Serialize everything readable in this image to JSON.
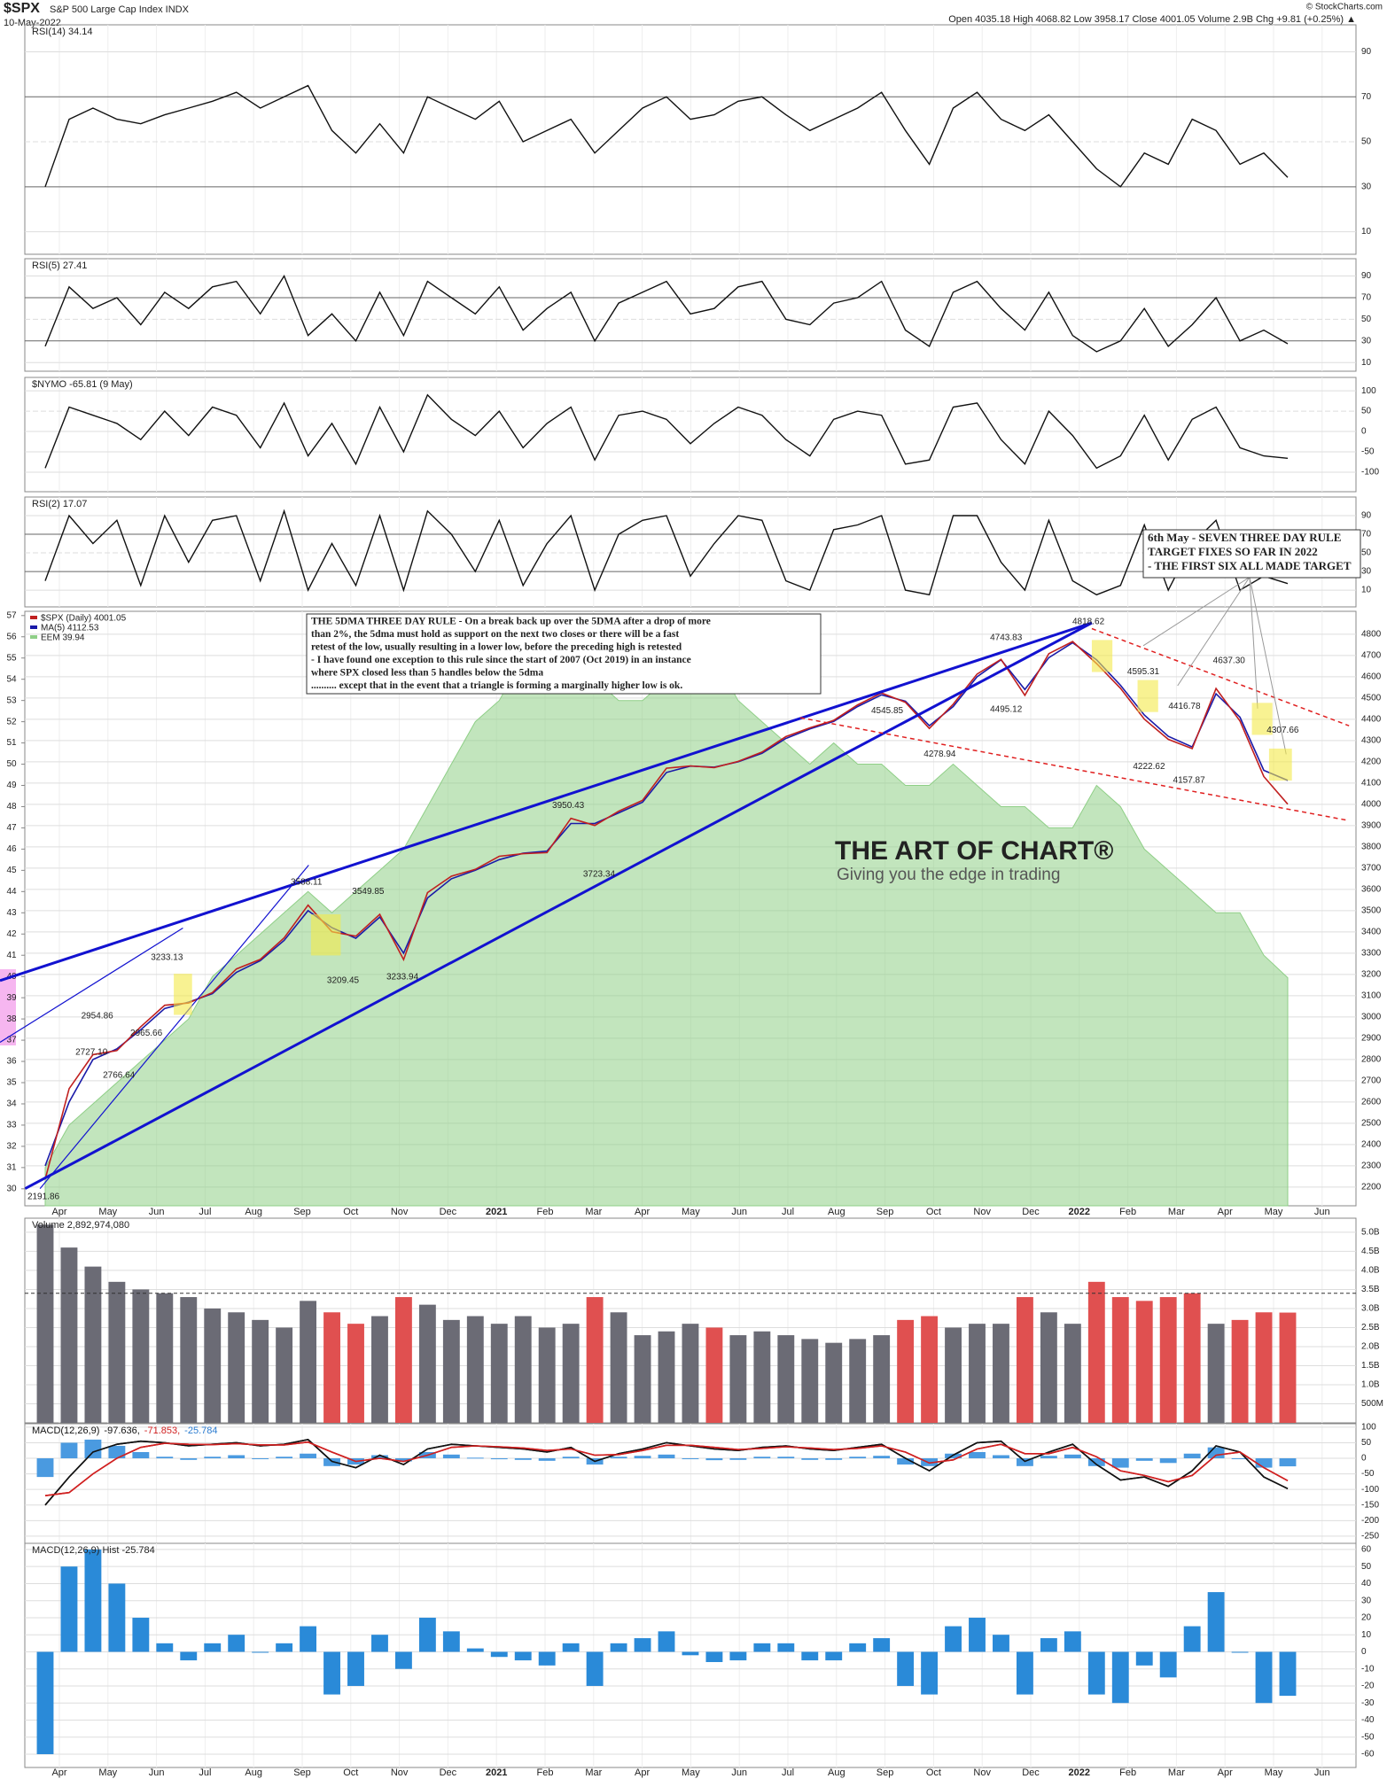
{
  "header": {
    "symbol": "$SPX",
    "name": "S&P 500 Large Cap Index INDX",
    "date": "10-May-2022",
    "stats": "Open 4035.18  High 4068.82  Low 3958.17  Close 4001.05  Volume 2.9B  Chg +9.81 (+0.25%) ▲",
    "copyright": "© StockCharts.com"
  },
  "x_axis": {
    "labels": [
      "Apr",
      "May",
      "Jun",
      "Jul",
      "Aug",
      "Sep",
      "Oct",
      "Nov",
      "Dec",
      "2021",
      "Feb",
      "Mar",
      "Apr",
      "May",
      "Jun",
      "Jul",
      "Aug",
      "Sep",
      "Oct",
      "Nov",
      "Dec",
      "2022",
      "Feb",
      "Mar",
      "Apr",
      "May",
      "Jun"
    ]
  },
  "notes": {
    "rule_box": [
      "THE 5DMA THREE DAY RULE - On a break back up over the 5DMA after a drop of more",
      "than 2%, the 5dma must hold as support on the next two closes or there will be a fast",
      "retest of the low, usually resulting in a lower low, before the preceding high is retested",
      "- I have found one exception to this rule since the start of 2007 (Oct 2019) in an instance",
      "where SPX closed less than 5 handles below the 5dma",
      ".......... except that in the event that a triangle is forming a marginally higher low is ok."
    ],
    "target_box": [
      "6th May - SEVEN THREE DAY RULE",
      "TARGET FIXES SO FAR IN 2022",
      "- THE FIRST SIX ALL MADE TARGET"
    ],
    "watermark": "THE ART OF CHART®",
    "watermark_sub": "Giving you the edge in trading"
  },
  "chart_data": [
    {
      "type": "line",
      "title": "RSI(14) 34.14",
      "ylim": [
        0,
        102
      ],
      "yticks": [
        10,
        30,
        50,
        70,
        90
      ],
      "color": "#111111",
      "values": [
        30,
        60,
        65,
        60,
        58,
        62,
        65,
        68,
        72,
        65,
        70,
        75,
        55,
        45,
        58,
        45,
        70,
        65,
        60,
        68,
        50,
        55,
        60,
        45,
        55,
        65,
        70,
        60,
        62,
        68,
        70,
        62,
        55,
        60,
        65,
        72,
        55,
        40,
        65,
        72,
        60,
        55,
        62,
        50,
        38,
        30,
        45,
        40,
        60,
        55,
        40,
        45,
        34.14
      ]
    },
    {
      "type": "line",
      "title": "RSI(5) 27.41",
      "ylim": [
        2,
        106
      ],
      "yticks": [
        10,
        30,
        50,
        70,
        90
      ],
      "color": "#111111",
      "values": [
        25,
        80,
        60,
        70,
        45,
        75,
        60,
        80,
        85,
        55,
        90,
        35,
        55,
        30,
        75,
        35,
        85,
        70,
        55,
        80,
        40,
        60,
        75,
        30,
        65,
        75,
        85,
        55,
        60,
        80,
        85,
        50,
        45,
        65,
        70,
        85,
        40,
        25,
        75,
        85,
        60,
        40,
        75,
        35,
        20,
        30,
        60,
        25,
        45,
        70,
        30,
        40,
        27.41
      ]
    },
    {
      "type": "line",
      "title": "$NYMO -65.81 (9 May)",
      "ylim": [
        -148,
        133
      ],
      "yticks": [
        -100,
        -50,
        0,
        50,
        100
      ],
      "color": "#111111",
      "values": [
        -90,
        60,
        40,
        20,
        -20,
        50,
        -10,
        60,
        40,
        -40,
        70,
        -60,
        20,
        -80,
        60,
        -50,
        90,
        30,
        -10,
        50,
        -40,
        20,
        60,
        -70,
        40,
        50,
        30,
        -30,
        20,
        60,
        40,
        -20,
        -60,
        30,
        50,
        40,
        -80,
        -70,
        60,
        70,
        -20,
        -80,
        50,
        -10,
        -90,
        -60,
        40,
        -70,
        30,
        60,
        -40,
        -60,
        -65.81
      ]
    },
    {
      "type": "line",
      "title": "RSI(2) 17.07",
      "ylim": [
        -8,
        110
      ],
      "yticks": [
        10,
        30,
        50,
        70,
        90
      ],
      "color": "#111111",
      "values": [
        20,
        90,
        60,
        85,
        15,
        90,
        40,
        85,
        90,
        20,
        95,
        10,
        60,
        15,
        90,
        10,
        95,
        70,
        30,
        85,
        15,
        60,
        90,
        10,
        70,
        85,
        90,
        25,
        60,
        90,
        85,
        20,
        10,
        75,
        80,
        90,
        10,
        5,
        90,
        90,
        40,
        10,
        85,
        20,
        5,
        15,
        80,
        10,
        60,
        85,
        10,
        25,
        17.07
      ]
    },
    {
      "type": "line",
      "ylim": [
        2112,
        4908
      ],
      "yticks": [
        2200,
        2300,
        2400,
        2500,
        2600,
        2700,
        2800,
        2900,
        3000,
        3100,
        3200,
        3300,
        3400,
        3500,
        3600,
        3700,
        3800,
        3900,
        4000,
        4100,
        4200,
        4300,
        4400,
        4500,
        4600,
        4700,
        4800
      ],
      "y2lim": [
        29.2,
        57.2
      ],
      "y2ticks": [
        30,
        31,
        32,
        33,
        34,
        35,
        36,
        37,
        38,
        39,
        40,
        41,
        42,
        43,
        44,
        45,
        46,
        47,
        48,
        49,
        50,
        51,
        52,
        53,
        54,
        55,
        56,
        57
      ],
      "series": [
        {
          "name": "EEM 39.94",
          "color": "#8fcf87",
          "axis": "y2",
          "fill": true,
          "values": [
            31,
            33,
            34,
            35,
            36,
            37,
            38,
            40,
            41,
            42,
            43,
            44,
            43,
            44,
            45,
            46,
            48,
            50,
            52,
            53,
            55,
            56,
            55,
            54,
            53,
            53,
            54,
            54,
            55,
            53,
            52,
            51,
            50,
            51,
            50,
            50,
            49,
            49,
            50,
            49,
            48,
            48,
            47,
            47,
            49,
            48,
            46,
            45,
            44,
            43,
            43,
            41,
            39.94
          ]
        },
        {
          "name": "MA(5) 4112.53",
          "color": "#1a1aa8",
          "values": [
            2300,
            2600,
            2800,
            2850,
            2940,
            3040,
            3070,
            3110,
            3210,
            3265,
            3360,
            3500,
            3420,
            3370,
            3470,
            3300,
            3560,
            3650,
            3690,
            3740,
            3770,
            3780,
            3910,
            3910,
            3960,
            4010,
            4150,
            4180,
            4175,
            4200,
            4240,
            4310,
            4355,
            4390,
            4460,
            4515,
            4485,
            4370,
            4460,
            4600,
            4680,
            4540,
            4690,
            4760,
            4680,
            4560,
            4420,
            4320,
            4270,
            4520,
            4410,
            4160,
            4112.53
          ]
        },
        {
          "name": "$SPX (Daily) 4001.05",
          "color": "#c02020",
          "values": [
            2237,
            2663,
            2823,
            2842,
            2954,
            3055,
            3066,
            3115,
            3226,
            3271,
            3372,
            3526,
            3401,
            3380,
            3483,
            3270,
            3585,
            3662,
            3694,
            3756,
            3768,
            3773,
            3934,
            3901,
            3968,
            4019,
            4170,
            4181,
            4173,
            4202,
            4246,
            4319,
            4360,
            4395,
            4468,
            4524,
            4480,
            4357,
            4471,
            4613,
            4682,
            4513,
            4709,
            4766,
            4662,
            4546,
            4401,
            4306,
            4262,
            4545,
            4392,
            4131,
            4001.05
          ]
        }
      ],
      "annotations": [
        "2191.86",
        "2727.10",
        "2766.64",
        "2954.86",
        "2965.66",
        "3233.13",
        "3588.11",
        "3549.85",
        "3209.45",
        "3233.94",
        "3950.43",
        "3723.34",
        "4545.85",
        "4278.94",
        "4495.12",
        "4743.83",
        "4818.62",
        "4595.31",
        "4416.78",
        "4222.62",
        "4157.87",
        "4637.30",
        "4307.66"
      ]
    },
    {
      "type": "bar",
      "title": "Volume 2,892,974,080",
      "ylim": [
        0,
        5370000000
      ],
      "up_color": "#6b6b75",
      "down_color": "#e05050",
      "average": 3400000000,
      "yticks": [
        {
          "value": 500000000,
          "label": "500M"
        },
        {
          "value": 1000000000,
          "label": "1.0B"
        },
        {
          "value": 1500000000,
          "label": "1.5B"
        },
        {
          "value": 2000000000,
          "label": "2.0B"
        },
        {
          "value": 2500000000,
          "label": "2.5B"
        },
        {
          "value": 3000000000,
          "label": "3.0B"
        },
        {
          "value": 3500000000,
          "label": "3.5B"
        },
        {
          "value": 4000000000,
          "label": "4.0B"
        },
        {
          "value": 4500000000,
          "label": "4.5B"
        },
        {
          "value": 5000000000,
          "label": "5.0B"
        }
      ],
      "values": [
        5200000000,
        4600000000,
        4100000000,
        3700000000,
        3500000000,
        3400000000,
        3300000000,
        3000000000,
        2900000000,
        2700000000,
        2500000000,
        3200000000,
        2900000000,
        2600000000,
        2800000000,
        3300000000,
        3100000000,
        2700000000,
        2800000000,
        2600000000,
        2800000000,
        2500000000,
        2600000000,
        3300000000,
        2900000000,
        2300000000,
        2400000000,
        2600000000,
        2500000000,
        2300000000,
        2400000000,
        2300000000,
        2200000000,
        2100000000,
        2200000000,
        2300000000,
        2700000000,
        2800000000,
        2500000000,
        2600000000,
        2600000000,
        3300000000,
        2900000000,
        2600000000,
        3700000000,
        3300000000,
        3200000000,
        3300000000,
        3400000000,
        2600000000,
        2700000000,
        2900000000,
        2892974080
      ]
    },
    {
      "type": "line",
      "title_parts": [
        {
          "text": "MACD(12,26,9)",
          "color": "#111111"
        },
        {
          "text": "-97.636,",
          "color": "#111111"
        },
        {
          "text": "-71.853,",
          "color": "#d02020"
        },
        {
          "text": "-25.784",
          "color": "#2a7bd0"
        }
      ],
      "ylim": [
        -273,
        111
      ],
      "yticks": [
        -250,
        -200,
        -150,
        -100,
        -50,
        0,
        50,
        100
      ],
      "series": [
        {
          "color": "#111111",
          "values": [
            -150,
            -60,
            20,
            45,
            55,
            50,
            40,
            45,
            50,
            40,
            45,
            60,
            -10,
            -30,
            10,
            -20,
            30,
            45,
            40,
            35,
            30,
            20,
            35,
            -10,
            15,
            30,
            50,
            40,
            30,
            25,
            35,
            40,
            30,
            25,
            35,
            45,
            0,
            -40,
            10,
            50,
            55,
            -10,
            20,
            45,
            -20,
            -70,
            -60,
            -90,
            -40,
            40,
            20,
            -60,
            -97.636
          ]
        },
        {
          "color": "#d02020",
          "values": [
            -120,
            -110,
            -50,
            0,
            35,
            48,
            45,
            44,
            47,
            43,
            43,
            52,
            20,
            -10,
            0,
            -10,
            10,
            35,
            40,
            37,
            33,
            25,
            30,
            10,
            12,
            25,
            42,
            42,
            35,
            28,
            32,
            37,
            33,
            28,
            32,
            40,
            20,
            -15,
            -5,
            30,
            45,
            15,
            15,
            35,
            5,
            -40,
            -55,
            -75,
            -55,
            10,
            20,
            -30,
            -71.853
          ]
        }
      ]
    },
    {
      "type": "bar",
      "title": "MACD(12,26,9) Hist -25.784",
      "ylim": [
        -67.8,
        63.6
      ],
      "yticks": [
        -60,
        -50,
        -40,
        -30,
        -20,
        -10,
        0,
        10,
        20,
        30,
        40,
        50,
        60
      ],
      "color": "#2a8ad8",
      "values": [
        -60,
        50,
        60,
        40,
        20,
        5,
        -5,
        5,
        10,
        0,
        5,
        15,
        -25,
        -20,
        10,
        -10,
        20,
        12,
        2,
        -3,
        -5,
        -8,
        5,
        -20,
        5,
        8,
        12,
        -2,
        -6,
        -5,
        5,
        5,
        -5,
        -5,
        5,
        8,
        -20,
        -25,
        15,
        20,
        10,
        -25,
        8,
        12,
        -25,
        -30,
        -8,
        -15,
        15,
        35,
        0,
        -30,
        -25.784
      ]
    }
  ]
}
